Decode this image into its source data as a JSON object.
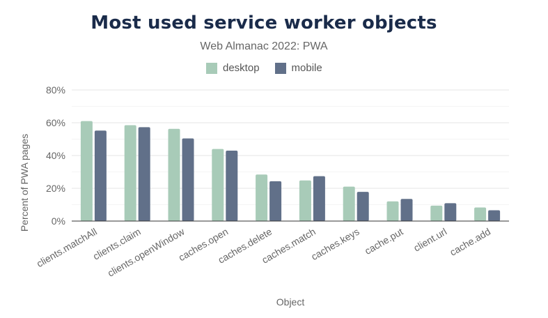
{
  "chart_data": {
    "type": "bar",
    "title": "Most used service worker objects",
    "subtitle": "Web Almanac 2022: PWA",
    "xlabel": "Object",
    "ylabel": "Percent of PWA pages",
    "ylim": [
      0,
      80
    ],
    "yticks": [
      0,
      20,
      40,
      60,
      80
    ],
    "ytick_labels": [
      "0%",
      "20%",
      "40%",
      "60%",
      "80%"
    ],
    "grid": true,
    "legend_position": "top",
    "categories": [
      "clients.matchAll",
      "clients.claim",
      "clients.openWindow",
      "caches.open",
      "caches.delete",
      "caches.match",
      "caches.keys",
      "cache.put",
      "client.url",
      "cache.add"
    ],
    "series": [
      {
        "name": "desktop",
        "color": "#a8cbb8",
        "values": [
          61,
          58.5,
          56.3,
          44,
          28.4,
          24.8,
          21,
          12,
          9.4,
          8.3
        ]
      },
      {
        "name": "mobile",
        "color": "#617089",
        "values": [
          55.2,
          57.3,
          50.4,
          43,
          24.3,
          27.4,
          17.8,
          13.5,
          10.9,
          6.6
        ]
      }
    ]
  }
}
